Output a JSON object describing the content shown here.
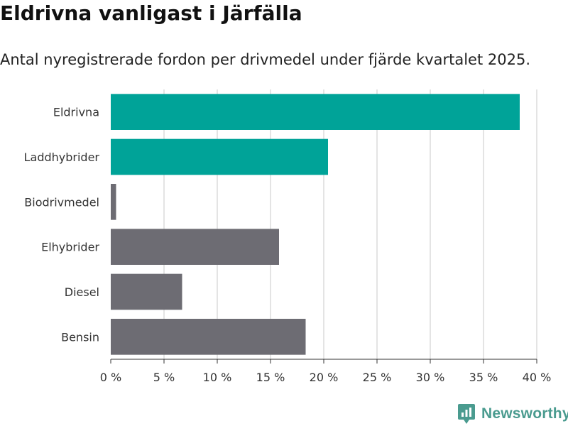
{
  "title": "Eldrivna vanligast i Järfälla",
  "subtitle": "Antal nyregistrerade fordon per drivmedel under fjärde kvartalet 2025.",
  "brand": {
    "name": "Newsworthy",
    "icon": "newsworthy-logo-icon",
    "color": "#4a9b8f"
  },
  "chart_data": {
    "type": "bar",
    "orientation": "horizontal",
    "title": "Eldrivna vanligast i Järfälla",
    "subtitle": "Antal nyregistrerade fordon per drivmedel under fjärde kvartalet 2025.",
    "categories": [
      "Eldrivna",
      "Laddhybrider",
      "Biodrivmedel",
      "Elhybrider",
      "Diesel",
      "Bensin"
    ],
    "values": [
      38.4,
      20.4,
      0.5,
      15.8,
      6.7,
      18.3
    ],
    "colors": [
      "#00a398",
      "#00a398",
      "#6d6c73",
      "#6d6c73",
      "#6d6c73",
      "#6d6c73"
    ],
    "unit": "%",
    "xlim": [
      0,
      40
    ],
    "xticks": [
      0,
      5,
      10,
      15,
      20,
      25,
      30,
      35,
      40
    ],
    "xtick_labels": [
      "0 %",
      "5 %",
      "10 %",
      "15 %",
      "20 %",
      "25 %",
      "30 %",
      "35 %",
      "40 %"
    ],
    "grid": true,
    "xlabel": "",
    "ylabel": ""
  }
}
